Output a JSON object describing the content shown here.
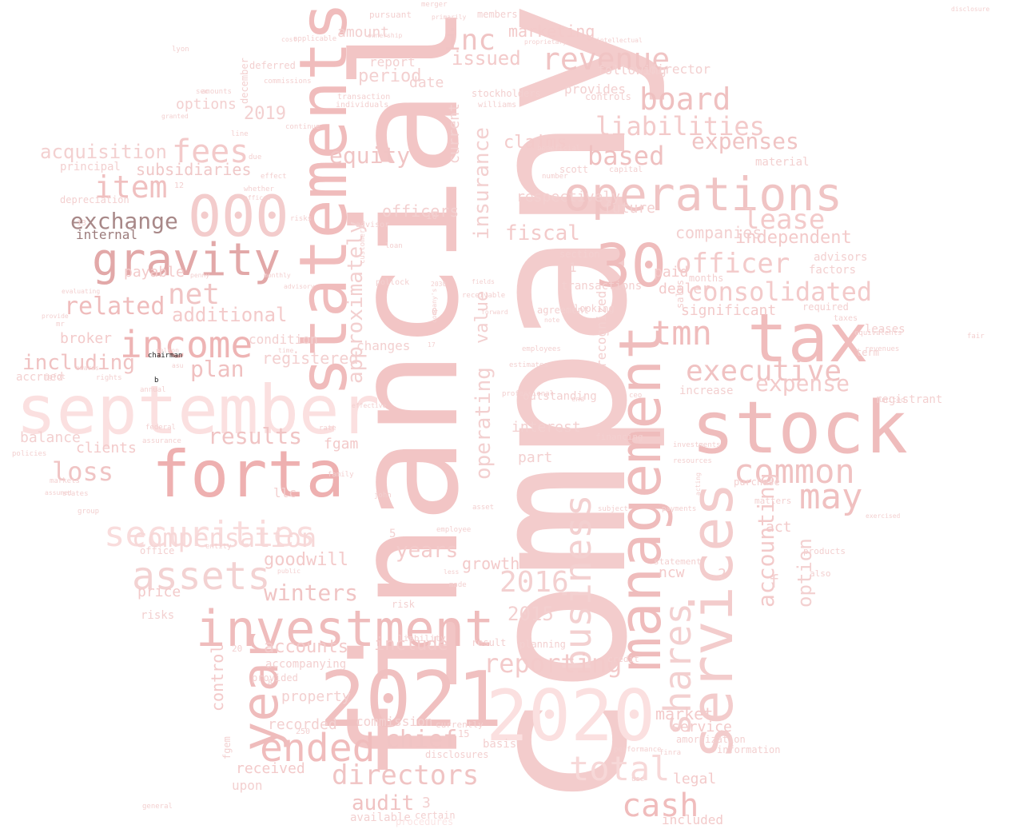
{
  "words": [
    {
      "text": "company",
      "color": "#f3cccc"
    },
    {
      "text": "financial",
      "color": "#f2c5c5"
    },
    {
      "text": "september",
      "color": "#fbe0e0"
    },
    {
      "text": "statements",
      "color": "#f0bcbc"
    },
    {
      "text": "management",
      "color": "#efbcbc"
    },
    {
      "text": "stock",
      "color": "#efbcbc"
    },
    {
      "text": "services",
      "color": "#f3cccc"
    },
    {
      "text": "tax",
      "color": "#f0bcbc"
    },
    {
      "text": "2021",
      "color": "#f0c0c0"
    },
    {
      "text": "2020",
      "color": "#fbe0e0"
    },
    {
      "text": "forta",
      "color": "#eeb0b0"
    },
    {
      "text": "investment",
      "color": "#efbcbc"
    },
    {
      "text": "operations",
      "color": "#f0c4c4"
    },
    {
      "text": "000",
      "color": "#f3cccc"
    },
    {
      "text": "gravity",
      "color": "#e2a8a8"
    },
    {
      "text": "30",
      "color": "#efbcbc"
    },
    {
      "text": "year",
      "color": "#efbcbc"
    },
    {
      "text": "securities",
      "color": "#f9dcdc"
    },
    {
      "text": "assets",
      "color": "#f3d2d2"
    },
    {
      "text": "income",
      "color": "#eeb4b4"
    },
    {
      "text": "ended",
      "color": "#f0bcbc"
    },
    {
      "text": "common",
      "color": "#f0c2c2"
    },
    {
      "text": "executive",
      "color": "#f0c2c2"
    },
    {
      "text": "shares",
      "color": "#f3d0d0"
    },
    {
      "text": "business",
      "color": "#f3d0d0"
    },
    {
      "text": "total",
      "color": "#f7d8d8"
    },
    {
      "text": "cash",
      "color": "#f0bcbc"
    },
    {
      "text": "revenue",
      "color": "#f0c4c4"
    },
    {
      "text": "board",
      "color": "#efc0c0"
    },
    {
      "text": "liabilities",
      "color": "#f3caca"
    },
    {
      "text": "fees",
      "color": "#f3caca"
    },
    {
      "text": "item",
      "color": "#f0c0c0"
    },
    {
      "text": "exchange",
      "color": "#a88888"
    },
    {
      "text": "internal",
      "color": "#9c7c7c"
    },
    {
      "text": "acquisition",
      "color": "#f3d0d0"
    },
    {
      "text": "subsidiaries",
      "color": "#f0c8c8"
    },
    {
      "text": "inc",
      "color": "#f0c4c4"
    },
    {
      "text": "issued",
      "color": "#f3caca"
    },
    {
      "text": "marketing",
      "color": "#f3caca"
    },
    {
      "text": "net",
      "color": "#f0c4c4"
    },
    {
      "text": "related",
      "color": "#efbcbc"
    },
    {
      "text": "additional",
      "color": "#f3caca"
    },
    {
      "text": "including",
      "color": "#f0c2c2"
    },
    {
      "text": "plan",
      "color": "#f0c0c0"
    },
    {
      "text": "loss",
      "color": "#f0c4c4"
    },
    {
      "text": "results",
      "color": "#f0c4c4"
    },
    {
      "text": "compensation",
      "color": "#f7d8d8"
    },
    {
      "text": "officer",
      "color": "#f3caca"
    },
    {
      "text": "consolidated",
      "color": "#f3caca"
    },
    {
      "text": "lease",
      "color": "#f3caca"
    },
    {
      "text": "expenses",
      "color": "#f0c4c4"
    },
    {
      "text": "based",
      "color": "#efc0c0"
    },
    {
      "text": "expense",
      "color": "#f3caca"
    },
    {
      "text": "tmn",
      "color": "#f0bcbc"
    },
    {
      "text": "may",
      "color": "#f0c0c0"
    },
    {
      "text": "accounting",
      "color": "#f3caca"
    },
    {
      "text": "option",
      "color": "#f3d0d0"
    },
    {
      "text": "reporting",
      "color": "#f3caca"
    },
    {
      "text": "directors",
      "color": "#f0c4c4"
    },
    {
      "text": "winters",
      "color": "#f0c4c4"
    },
    {
      "text": "audit",
      "color": "#f0c2c2"
    },
    {
      "text": "chief",
      "color": "#f0c4c4"
    },
    {
      "text": "equity",
      "color": "#f0c4c4"
    },
    {
      "text": "approximately",
      "color": "#f3d0d0"
    },
    {
      "text": "insurance",
      "color": "#f3d0d0"
    },
    {
      "text": "operating",
      "color": "#f3d0d0"
    },
    {
      "text": "value",
      "color": "#f3d0d0"
    },
    {
      "text": "claims",
      "color": "#f3caca"
    },
    {
      "text": "fiscal",
      "color": "#f3caca"
    },
    {
      "text": "years",
      "color": "#f3caca"
    },
    {
      "text": "goodwill",
      "color": "#f3caca"
    },
    {
      "text": "accounts",
      "color": "#f3caca"
    },
    {
      "text": "include",
      "color": "#f3caca"
    },
    {
      "text": "control",
      "color": "#f3caca"
    },
    {
      "text": "registered",
      "color": "#f3d0d0"
    },
    {
      "text": "price",
      "color": "#f3caca"
    },
    {
      "text": "balance",
      "color": "#f3d0d0"
    },
    {
      "text": "clients",
      "color": "#f3caca"
    },
    {
      "text": "payable",
      "color": "#f3caca"
    },
    {
      "text": "options",
      "color": "#f3d0d0"
    },
    {
      "text": "broker",
      "color": "#f3caca"
    },
    {
      "text": "growth",
      "color": "#f3caca"
    },
    {
      "text": "market",
      "color": "#f3caca"
    },
    {
      "text": "service",
      "color": "#f3caca"
    },
    {
      "text": "significant",
      "color": "#f3caca"
    },
    {
      "text": "dealer",
      "color": "#f3caca"
    },
    {
      "text": "paid",
      "color": "#f3caca"
    },
    {
      "text": "act",
      "color": "#f3caca"
    },
    {
      "text": "independent",
      "color": "#f3caca"
    },
    {
      "text": "companies",
      "color": "#f3d0d0"
    },
    {
      "text": "future",
      "color": "#f3d0d0"
    },
    {
      "text": "respectively",
      "color": "#f3d0d0"
    },
    {
      "text": "period",
      "color": "#f3d0d0"
    },
    {
      "text": "date",
      "color": "#f3d0d0"
    },
    {
      "text": "amount",
      "color": "#f3d0d0"
    },
    {
      "text": "report",
      "color": "#f3d0d0"
    },
    {
      "text": "officers",
      "color": "#f3d0d0"
    },
    {
      "text": "part",
      "color": "#f3d0d0"
    },
    {
      "text": "interest",
      "color": "#f3d0d0"
    },
    {
      "text": "commission",
      "color": "#f3d0d0"
    },
    {
      "text": "recorded",
      "color": "#f3d0d0"
    },
    {
      "text": "received",
      "color": "#f3caca"
    },
    {
      "text": "accompanying",
      "color": "#f3d0d0"
    },
    {
      "text": "property",
      "color": "#f3d0d0"
    },
    {
      "text": "fgam",
      "color": "#f3caca"
    },
    {
      "text": "ncw",
      "color": "#f3caca"
    },
    {
      "text": "legal",
      "color": "#f3caca"
    },
    {
      "text": "included",
      "color": "#f3caca"
    },
    {
      "text": "upon",
      "color": "#f3d0d0"
    },
    {
      "text": "llc",
      "color": "#f3d0d0"
    },
    {
      "text": "condition",
      "color": "#f3d0d0"
    },
    {
      "text": "changes",
      "color": "#f3d0d0"
    },
    {
      "text": "outstanding",
      "color": "#f3d0d0"
    },
    {
      "text": "recognized",
      "color": "#f3d0d0"
    },
    {
      "text": "transactions",
      "color": "#f3d0d0"
    },
    {
      "text": "current",
      "color": "#f3d0d0"
    },
    {
      "text": "director",
      "color": "#f3d0d0"
    },
    {
      "text": "following",
      "color": "#f3d0d0"
    },
    {
      "text": "provides",
      "color": "#f3d0d0"
    },
    {
      "text": "material",
      "color": "#f3d0d0"
    },
    {
      "text": "advisors",
      "color": "#f3d0d0"
    },
    {
      "text": "factors",
      "color": "#f3d0d0"
    },
    {
      "text": "leases",
      "color": "#f3d0d0"
    },
    {
      "text": "registrant",
      "color": "#f3d0d0"
    },
    {
      "text": "term",
      "color": "#f3d0d0"
    },
    {
      "text": "risks",
      "color": "#f3d0d0"
    },
    {
      "text": "provided",
      "color": "#f3d0d0"
    },
    {
      "text": "accrued",
      "color": "#f3d0d0"
    },
    {
      "text": "depreciation",
      "color": "#f3d0d0"
    },
    {
      "text": "principal",
      "color": "#f3d0d0"
    },
    {
      "text": "purchase",
      "color": "#f3d0d0"
    },
    {
      "text": "basis",
      "color": "#f3d0d0"
    },
    {
      "text": "available",
      "color": "#f3d0d0"
    },
    {
      "text": "procedures",
      "color": "#fbe4e4"
    },
    {
      "text": "certain",
      "color": "#f3d0d0"
    },
    {
      "text": "fgem",
      "color": "#f3d0d0"
    },
    {
      "text": "deferred",
      "color": "#f3d0d0"
    },
    {
      "text": "december",
      "color": "#f3d0d0"
    },
    {
      "text": "pursuant",
      "color": "#f3d0d0"
    },
    {
      "text": "members",
      "color": "#f3d0d0"
    },
    {
      "text": "stockholders",
      "color": "#f3d0d0"
    },
    {
      "text": "controls",
      "color": "#f3d0d0"
    },
    {
      "text": "scott",
      "color": "#f3d0d0"
    },
    {
      "text": "section",
      "color": "#f3d0d0"
    },
    {
      "text": "agreement",
      "color": "#f3d0d0"
    },
    {
      "text": "months",
      "color": "#f3d0d0"
    },
    {
      "text": "required",
      "color": "#f3d0d0"
    },
    {
      "text": "sales",
      "color": "#f3d0d0"
    },
    {
      "text": "amortization",
      "color": "#f3d0d0"
    },
    {
      "text": "information",
      "color": "#f3d0d0"
    },
    {
      "text": "risk",
      "color": "#f3d0d0"
    },
    {
      "text": "liability",
      "color": "#f3d0d0"
    },
    {
      "text": "result",
      "color": "#f3d0d0"
    },
    {
      "text": "planning",
      "color": "#f3d0d0"
    },
    {
      "text": "disclosures",
      "color": "#f3d0d0"
    },
    {
      "text": "currently",
      "color": "#f3d0d0"
    },
    {
      "text": "credit",
      "color": "#f3d0d0"
    },
    {
      "text": "financing",
      "color": "#f3d0d0"
    },
    {
      "text": "statement",
      "color": "#f3d0d0"
    },
    {
      "text": "matters",
      "color": "#f3d0d0"
    },
    {
      "text": "products",
      "color": "#f3d0d0"
    },
    {
      "text": "also",
      "color": "#f3d0d0"
    },
    {
      "text": "increase",
      "color": "#f3d0d0"
    },
    {
      "text": "looking",
      "color": "#f3d0d0"
    },
    {
      "text": "office",
      "color": "#f3d0d0"
    },
    {
      "text": "2016",
      "color": "#f3d0d0"
    },
    {
      "text": "2015",
      "color": "#f3d0d0"
    },
    {
      "text": "2019",
      "color": "#f3d0d0"
    },
    {
      "text": "1",
      "color": "#f3d0d0"
    },
    {
      "text": "f",
      "color": "#f3d0d0"
    },
    {
      "text": "2",
      "color": "#f3d0d0"
    },
    {
      "text": "3",
      "color": "#f3d0d0"
    },
    {
      "text": "5",
      "color": "#f3d0d0"
    },
    {
      "text": "0",
      "color": "#f3d0d0"
    },
    {
      "text": "10",
      "color": "#f3d0d0"
    },
    {
      "text": "15",
      "color": "#f3d0d0"
    },
    {
      "text": "13",
      "color": "#f3d0d0"
    },
    {
      "text": "12",
      "color": "#f3d0d0"
    },
    {
      "text": "20",
      "color": "#f3d0d0"
    },
    {
      "text": "8",
      "color": "#f3d0d0"
    },
    {
      "text": "250",
      "color": "#f3d0d0"
    },
    {
      "text": "taxes",
      "color": "#f3d0d0"
    },
    {
      "text": "due",
      "color": "#f3d0d0"
    },
    {
      "text": "whether",
      "color": "#f3d0d0"
    },
    {
      "text": "continue",
      "color": "#f3d0d0"
    },
    {
      "text": "commissions",
      "color": "#f3d0d0"
    },
    {
      "text": "applicable",
      "color": "#f3d0d0"
    },
    {
      "text": "merger",
      "color": "#f3d0d0"
    },
    {
      "text": "primarily",
      "color": "#f3d0d0"
    },
    {
      "text": "ownership",
      "color": "#f3d0d0"
    },
    {
      "text": "transaction",
      "color": "#f3d0d0"
    },
    {
      "text": "individuals",
      "color": "#f3d0d0"
    },
    {
      "text": "williams",
      "color": "#f3d0d0"
    },
    {
      "text": "capital",
      "color": "#f3d0d0"
    },
    {
      "text": "number",
      "color": "#f3d0d0"
    },
    {
      "text": "beneficial",
      "color": "#f3d0d0"
    },
    {
      "text": "advisor",
      "color": "#f3d0d0"
    },
    {
      "text": "loan",
      "color": "#f3d0d0"
    },
    {
      "text": "customers",
      "color": "#f3d0d0"
    },
    {
      "text": "pollock",
      "color": "#f3d0d0"
    },
    {
      "text": "penny",
      "color": "#f3d0d0"
    },
    {
      "text": "monthly",
      "color": "#f3d0d0"
    },
    {
      "text": "advisory",
      "color": "#f3d0d0"
    },
    {
      "text": "time",
      "color": "#f3d0d0"
    },
    {
      "text": "nelson",
      "color": "#f3d0d0"
    },
    {
      "text": "chairman",
      "color": "#222222"
    },
    {
      "text": "b",
      "color": "#222222"
    },
    {
      "text": "rights",
      "color": "#f3d0d0"
    },
    {
      "text": "federal",
      "color": "#f3d0d0"
    },
    {
      "text": "assurance",
      "color": "#f3d0d0"
    },
    {
      "text": "policies",
      "color": "#f3d0d0"
    },
    {
      "text": "family",
      "color": "#f3d0d0"
    },
    {
      "text": "rate",
      "color": "#f3d0d0"
    },
    {
      "text": "effective",
      "color": "#f3d0d0"
    },
    {
      "text": "employees",
      "color": "#f3d0d0"
    },
    {
      "text": "estimates",
      "color": "#f3d0d0"
    },
    {
      "text": "professional",
      "color": "#f3d0d0"
    },
    {
      "text": "end",
      "color": "#f3d0d0"
    },
    {
      "text": "forward",
      "color": "#f3d0d0"
    },
    {
      "text": "note",
      "color": "#f3d0d0"
    },
    {
      "text": "ceo",
      "color": "#f3d0d0"
    },
    {
      "text": "investments",
      "color": "#f3d0d0"
    },
    {
      "text": "resources",
      "color": "#f3d0d0"
    },
    {
      "text": "fair",
      "color": "#f3d0d0"
    },
    {
      "text": "subject",
      "color": "#f3d0d0"
    },
    {
      "text": "performance",
      "color": "#f3d0d0"
    },
    {
      "text": "finra",
      "color": "#f3d0d0"
    },
    {
      "text": "use",
      "color": "#f3d0d0"
    },
    {
      "text": "made",
      "color": "#f3d0d0"
    },
    {
      "text": "less",
      "color": "#f3d0d0"
    },
    {
      "text": "asset",
      "color": "#f3d0d0"
    },
    {
      "text": "employee",
      "color": "#f3d0d0"
    },
    {
      "text": "john",
      "color": "#f3d0d0"
    },
    {
      "text": "entity",
      "color": "#f3d0d0"
    },
    {
      "text": "public",
      "color": "#f3d0d0"
    },
    {
      "text": "disclosure",
      "color": "#f3d0d0"
    },
    {
      "text": "proprietary",
      "color": "#f3d0d0"
    },
    {
      "text": "intellectual",
      "color": "#f3d0d0"
    },
    {
      "text": "revenues",
      "color": "#f3d0d0"
    },
    {
      "text": "equivalents",
      "color": "#f3d0d0"
    },
    {
      "text": "exercised",
      "color": "#f3d0d0"
    },
    {
      "text": "acting",
      "color": "#f3d0d0"
    },
    {
      "text": "payments",
      "color": "#f3d0d0"
    },
    {
      "text": "assumed",
      "color": "#f3d0d0"
    },
    {
      "text": "states",
      "color": "#f3d0d0"
    },
    {
      "text": "markets",
      "color": "#f3d0d0"
    },
    {
      "text": "group",
      "color": "#f3d0d0"
    },
    {
      "text": "sec",
      "color": "#f3d0d0"
    },
    {
      "text": "granted",
      "color": "#f3d0d0"
    },
    {
      "text": "mr",
      "color": "#f3d0d0"
    },
    {
      "text": "fgfot",
      "color": "#f3d0d0"
    },
    {
      "text": "awards",
      "color": "#f3d0d0"
    },
    {
      "text": "annual",
      "color": "#f3d0d0"
    },
    {
      "text": "evaluating",
      "color": "#f3d0d0"
    },
    {
      "text": "provide",
      "color": "#f3d0d0"
    },
    {
      "text": "asu",
      "color": "#f3d0d0"
    },
    {
      "text": "cost",
      "color": "#f3d0d0"
    },
    {
      "text": "offices",
      "color": "#f3d0d0"
    },
    {
      "text": "receivable",
      "color": "#f3d0d0"
    },
    {
      "text": "company's",
      "color": "#f3d0d0"
    },
    {
      "text": "17",
      "color": "#f3d0d0"
    },
    {
      "text": "2030",
      "color": "#f3d0d0"
    },
    {
      "text": "fields",
      "color": "#f3d0d0"
    },
    {
      "text": "united",
      "color": "#f3d0d0"
    },
    {
      "text": "general",
      "color": "#f3d0d0"
    },
    {
      "text": "lyon",
      "color": "#f3d0d0"
    },
    {
      "text": "amounts",
      "color": "#f3d0d0"
    },
    {
      "text": "line",
      "color": "#f3d0d0"
    },
    {
      "text": "effect",
      "color": "#f3d0d0"
    },
    {
      "text": "risks",
      "color": "#f3d0d0"
    }
  ]
}
